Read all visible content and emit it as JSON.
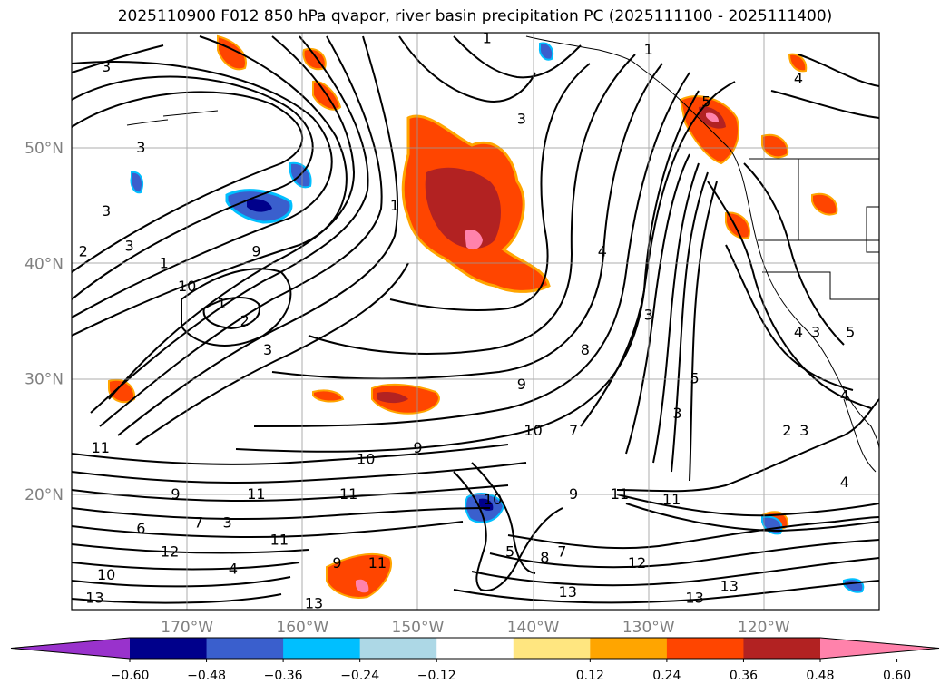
{
  "title": "2025110900 F012 850 hPa qvapor, river basin precipitation PC (2025111100 - 2025111400)",
  "map": {
    "lon_range": [
      -180,
      -110
    ],
    "lat_range": [
      10,
      60
    ],
    "lat_ticks": [
      {
        "value": 50,
        "label": "50°N"
      },
      {
        "value": 40,
        "label": "40°N"
      },
      {
        "value": 30,
        "label": "30°N"
      },
      {
        "value": 20,
        "label": "20°N"
      }
    ],
    "lon_ticks": [
      {
        "value": -170,
        "label": "170°W"
      },
      {
        "value": -160,
        "label": "160°W"
      },
      {
        "value": -150,
        "label": "150°W"
      },
      {
        "value": -140,
        "label": "140°W"
      },
      {
        "value": -130,
        "label": "130°W"
      },
      {
        "value": -120,
        "label": "120°W"
      }
    ],
    "contour_labels": [
      {
        "text": "1",
        "lon": -144,
        "lat": 59.5
      },
      {
        "text": "1",
        "lon": -130,
        "lat": 58.5
      },
      {
        "text": "4",
        "lon": -117,
        "lat": 56
      },
      {
        "text": "3",
        "lon": -177,
        "lat": 57
      },
      {
        "text": "3",
        "lon": -174,
        "lat": 50
      },
      {
        "text": "3",
        "lon": -177,
        "lat": 44.5
      },
      {
        "text": "3",
        "lon": -175,
        "lat": 41.5
      },
      {
        "text": "2",
        "lon": -179,
        "lat": 41
      },
      {
        "text": "1",
        "lon": -172,
        "lat": 40
      },
      {
        "text": "10",
        "lon": -170,
        "lat": 38
      },
      {
        "text": "9",
        "lon": -164,
        "lat": 41
      },
      {
        "text": "1",
        "lon": -152,
        "lat": 45
      },
      {
        "text": "3",
        "lon": -141,
        "lat": 52.5
      },
      {
        "text": "5",
        "lon": -125,
        "lat": 54
      },
      {
        "text": "4",
        "lon": -134,
        "lat": 41
      },
      {
        "text": "1",
        "lon": -167,
        "lat": 36.5
      },
      {
        "text": "2",
        "lon": -165,
        "lat": 35
      },
      {
        "text": "3",
        "lon": -163,
        "lat": 32.5
      },
      {
        "text": "3",
        "lon": -130,
        "lat": 35.5
      },
      {
        "text": "8",
        "lon": -135.5,
        "lat": 32.5
      },
      {
        "text": "5",
        "lon": -126,
        "lat": 30
      },
      {
        "text": "9",
        "lon": -141,
        "lat": 29.5
      },
      {
        "text": "4",
        "lon": -117,
        "lat": 34
      },
      {
        "text": "3",
        "lon": -115.5,
        "lat": 34
      },
      {
        "text": "5",
        "lon": -112.5,
        "lat": 34
      },
      {
        "text": "4",
        "lon": -113,
        "lat": 28.5
      },
      {
        "text": "3",
        "lon": -127.5,
        "lat": 27
      },
      {
        "text": "2",
        "lon": -118,
        "lat": 25.5
      },
      {
        "text": "3",
        "lon": -116.5,
        "lat": 25.5
      },
      {
        "text": "10",
        "lon": -140,
        "lat": 25.5
      },
      {
        "text": "7",
        "lon": -136.5,
        "lat": 25.5
      },
      {
        "text": "9",
        "lon": -150,
        "lat": 24
      },
      {
        "text": "10",
        "lon": -154.5,
        "lat": 23
      },
      {
        "text": "11",
        "lon": -177.5,
        "lat": 24
      },
      {
        "text": "11",
        "lon": -164,
        "lat": 20
      },
      {
        "text": "11",
        "lon": -156,
        "lat": 20
      },
      {
        "text": "9",
        "lon": -171,
        "lat": 20
      },
      {
        "text": "11",
        "lon": -132.5,
        "lat": 20
      },
      {
        "text": "9",
        "lon": -136.5,
        "lat": 20
      },
      {
        "text": "11",
        "lon": -128,
        "lat": 19.5
      },
      {
        "text": "10",
        "lon": -143.5,
        "lat": 19.5
      },
      {
        "text": "4",
        "lon": -113,
        "lat": 21
      },
      {
        "text": "6",
        "lon": -174,
        "lat": 17
      },
      {
        "text": "7",
        "lon": -169,
        "lat": 17.5
      },
      {
        "text": "3",
        "lon": -166.5,
        "lat": 17.5
      },
      {
        "text": "11",
        "lon": -162,
        "lat": 16
      },
      {
        "text": "12",
        "lon": -171.5,
        "lat": 15
      },
      {
        "text": "4",
        "lon": -166,
        "lat": 13.5
      },
      {
        "text": "10",
        "lon": -177,
        "lat": 13
      },
      {
        "text": "13",
        "lon": -178,
        "lat": 11
      },
      {
        "text": "9",
        "lon": -157,
        "lat": 14
      },
      {
        "text": "11",
        "lon": -153.5,
        "lat": 14
      },
      {
        "text": "13",
        "lon": -159,
        "lat": 10.5
      },
      {
        "text": "5",
        "lon": -142,
        "lat": 15
      },
      {
        "text": "8",
        "lon": -139,
        "lat": 14.5
      },
      {
        "text": "7",
        "lon": -137.5,
        "lat": 15
      },
      {
        "text": "12",
        "lon": -131,
        "lat": 14
      },
      {
        "text": "13",
        "lon": -137,
        "lat": 11.5
      },
      {
        "text": "13",
        "lon": -126,
        "lat": 11
      },
      {
        "text": "13",
        "lon": -123,
        "lat": 12
      }
    ],
    "colors": {
      "neg_060_below": "#9932cc",
      "neg_060_048": "#00008b",
      "neg_048_036": "#3a5fcd",
      "neg_036_024": "#00bfff",
      "neg_024_012": "#add8e6",
      "pos_012_024": "#ffe680",
      "pos_024_036": "#ffa500",
      "pos_036_048": "#ff4500",
      "pos_048_060": "#b22222",
      "pos_060_above": "#ff82ab"
    }
  },
  "colorbar": {
    "ticks": [
      "−0.60",
      "−0.48",
      "−0.36",
      "−0.24",
      "−0.12",
      "0.12",
      "0.24",
      "0.36",
      "0.48",
      "0.60"
    ],
    "colors": [
      "#9932cc",
      "#00008b",
      "#3a5fcd",
      "#00bfff",
      "#add8e6",
      "#ffffff",
      "#ffe680",
      "#ffa500",
      "#ff4500",
      "#b22222",
      "#ff82ab"
    ]
  }
}
